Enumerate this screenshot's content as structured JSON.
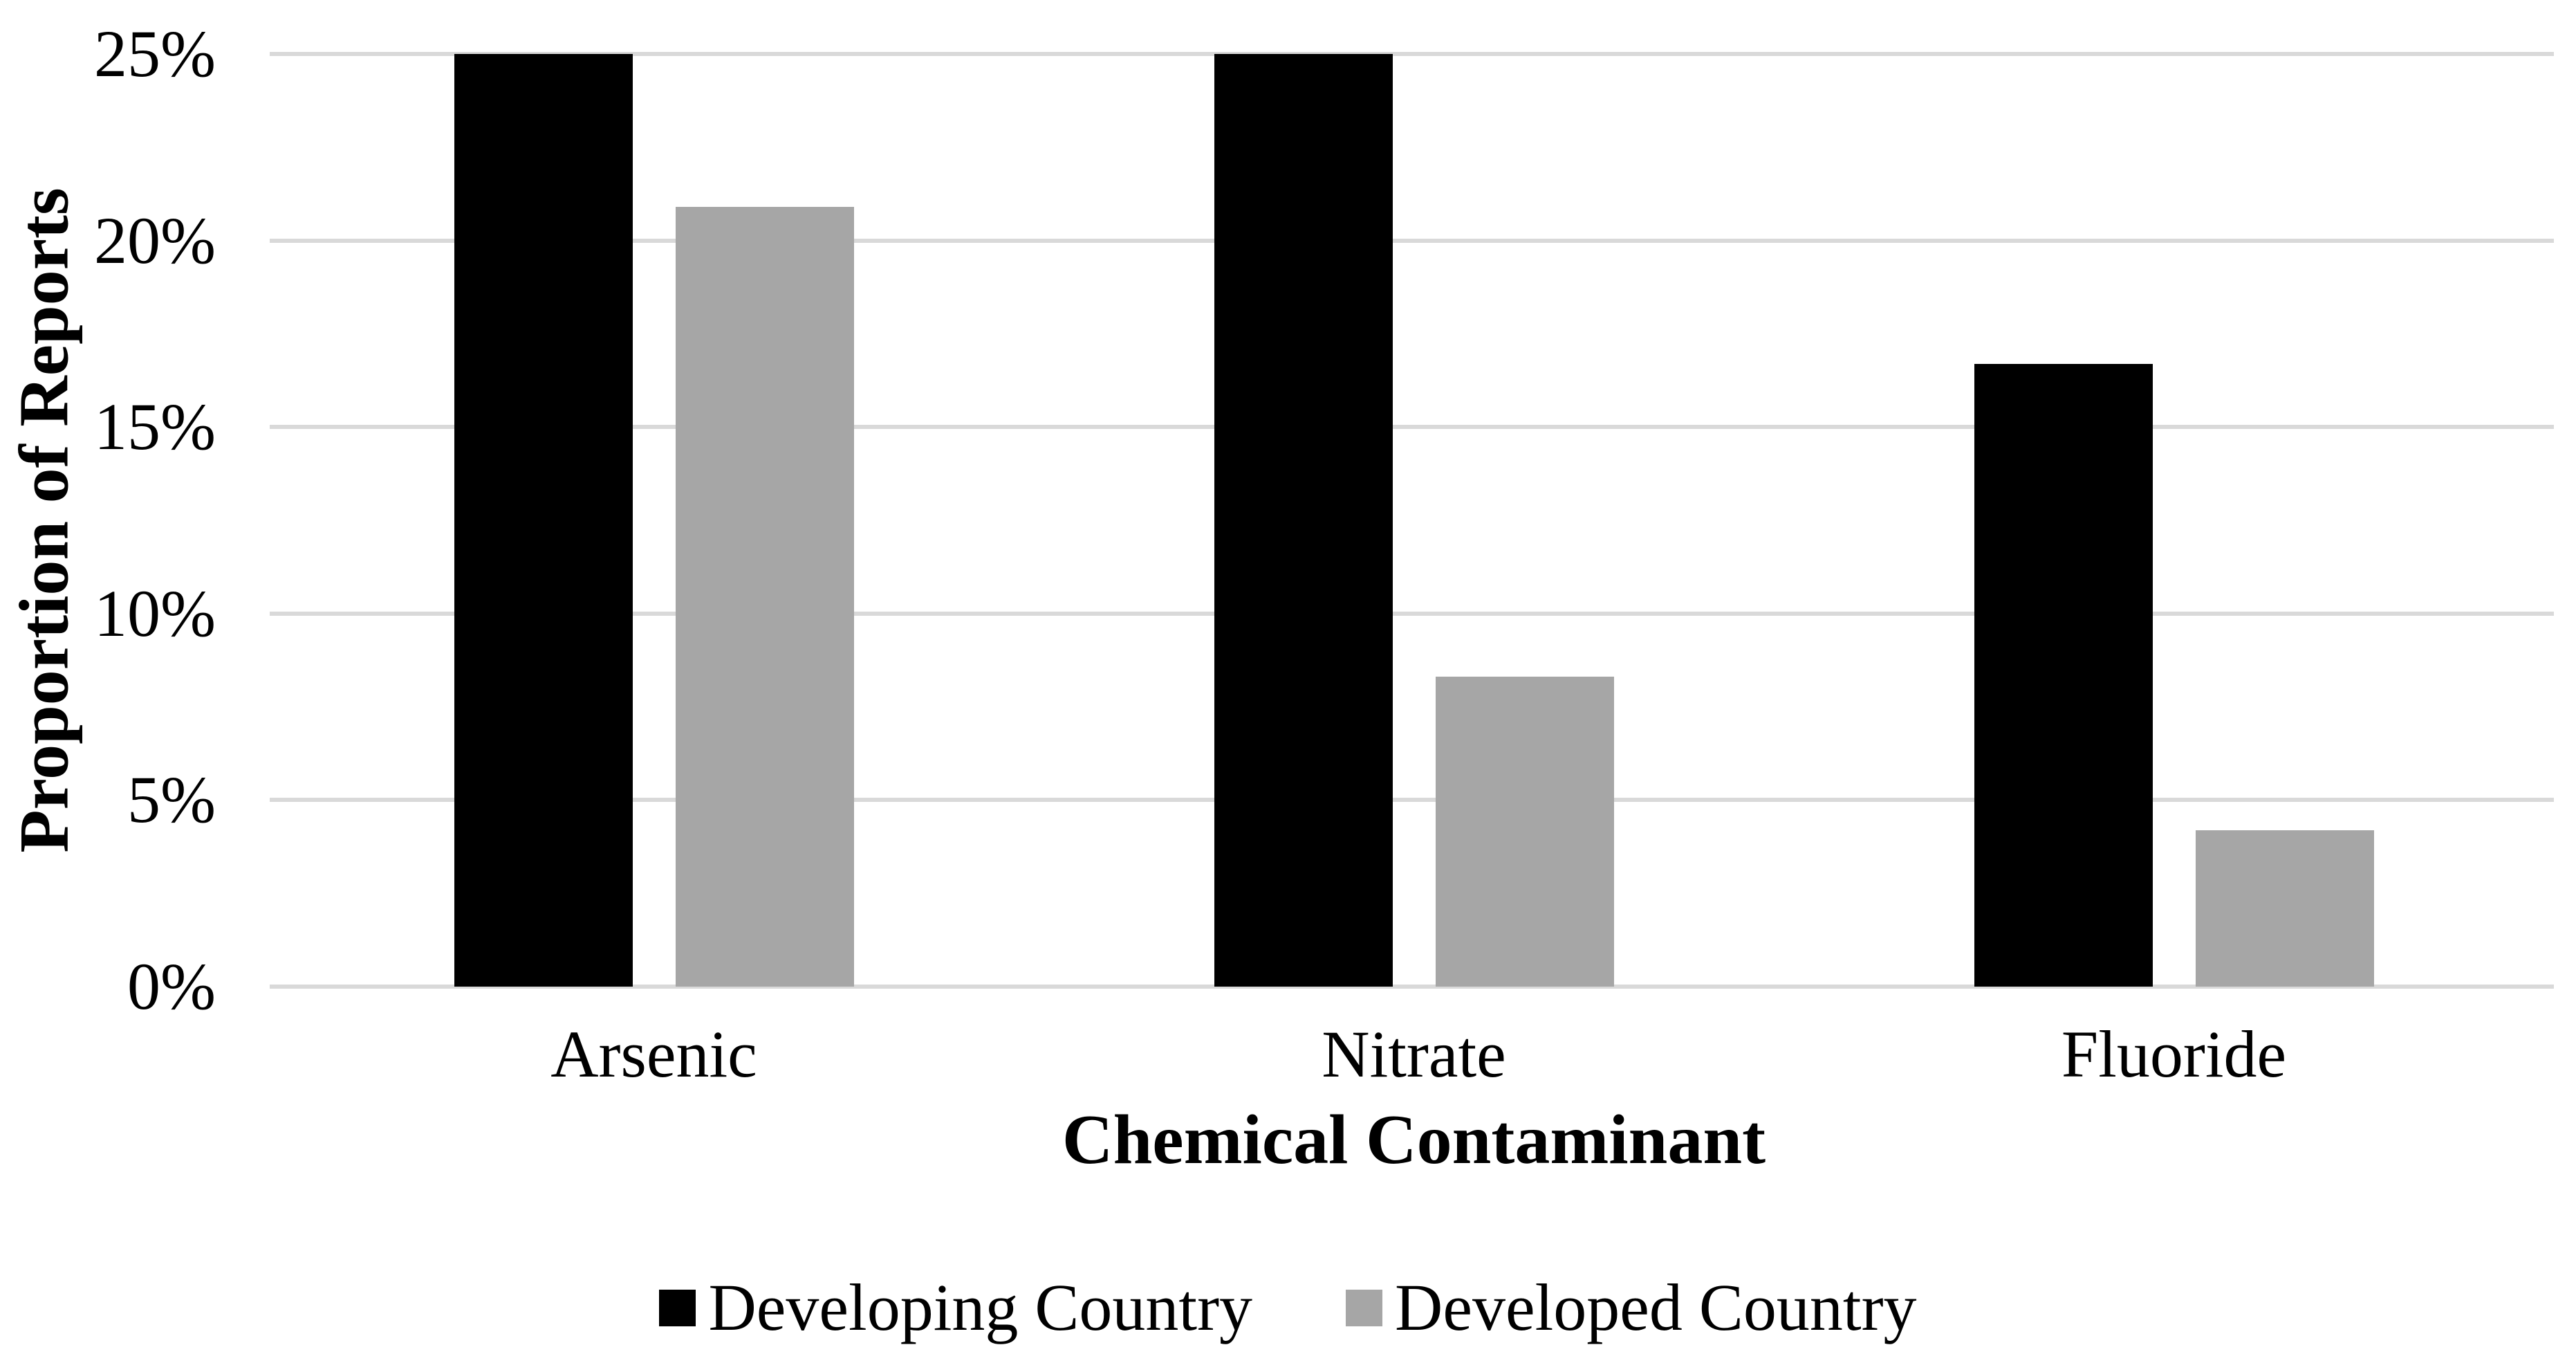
{
  "chart_data": {
    "type": "bar",
    "title": "",
    "categories": [
      "Arsenic",
      "Nitrate",
      "Fluoride"
    ],
    "series": [
      {
        "name": "Developing Country",
        "color": "#000000",
        "values": [
          25.0,
          25.0,
          16.7
        ]
      },
      {
        "name": "Developed Country",
        "color": "#a6a6a6",
        "values": [
          20.9,
          8.3,
          4.2
        ]
      }
    ],
    "xlabel": "Chemical Contaminant",
    "ylabel": "Proportion of Reports",
    "ylim": [
      0,
      25
    ],
    "yticks": [
      {
        "value": 0,
        "label": "0%"
      },
      {
        "value": 5,
        "label": "5%"
      },
      {
        "value": 10,
        "label": "10%"
      },
      {
        "value": 15,
        "label": "15%"
      },
      {
        "value": 20,
        "label": "20%"
      },
      {
        "value": 25,
        "label": "25%"
      }
    ],
    "grid": true,
    "gridline_color": "#d9d9d9",
    "legend_position": "bottom"
  }
}
